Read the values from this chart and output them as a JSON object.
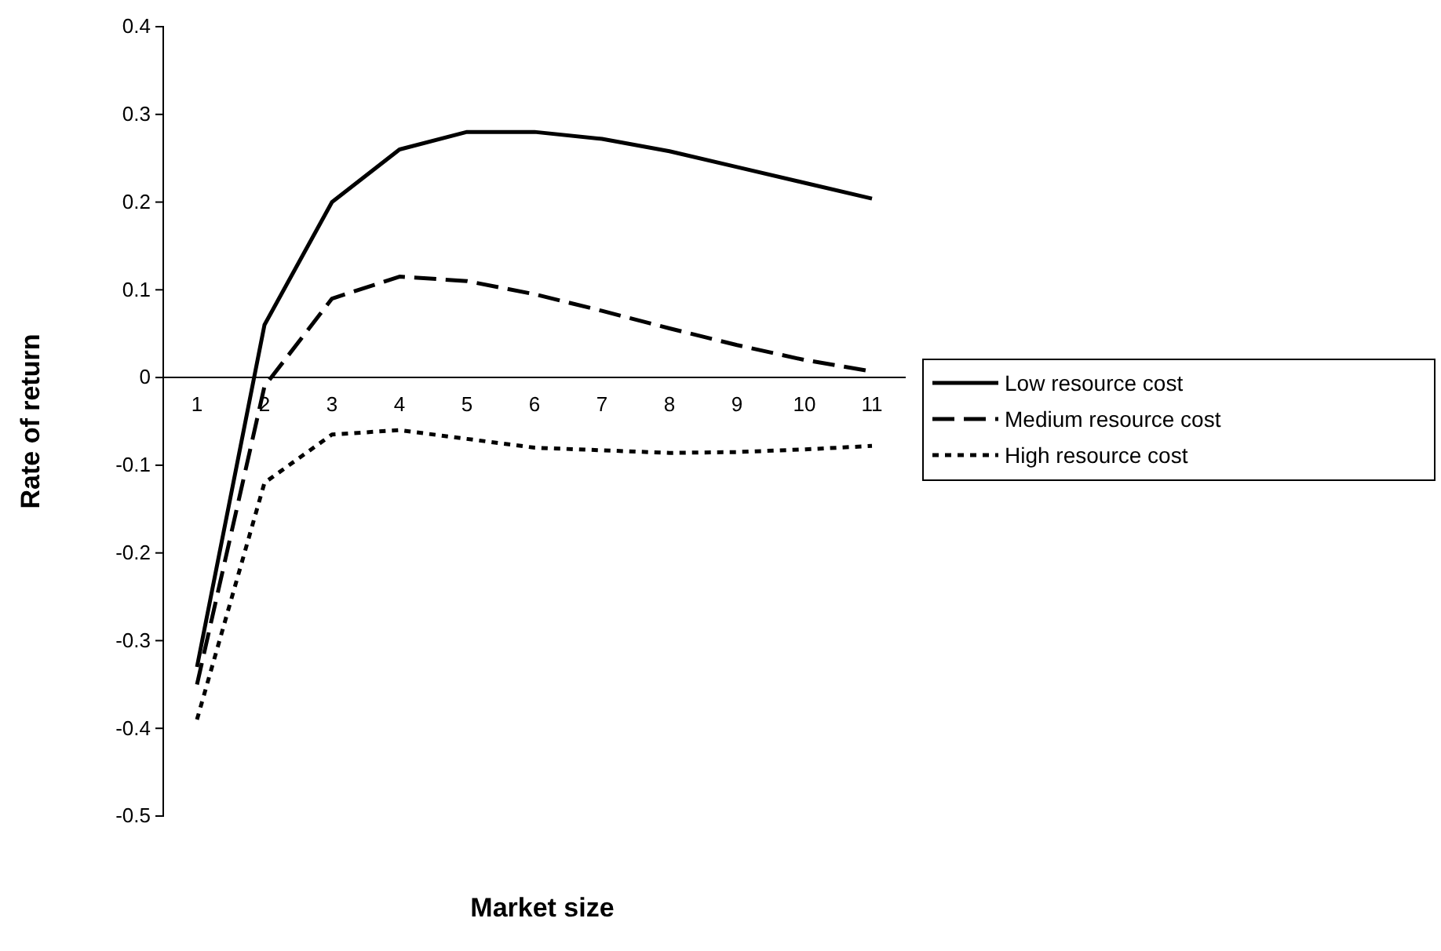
{
  "chart_data": {
    "type": "line",
    "xlabel": "Market size",
    "ylabel": "Rate of return",
    "categories": [
      "1",
      "2",
      "3",
      "4",
      "5",
      "6",
      "7",
      "8",
      "9",
      "10",
      "11"
    ],
    "ylim": [
      -0.5,
      0.4
    ],
    "yticks": [
      -0.5,
      -0.4,
      -0.3,
      -0.2,
      -0.1,
      0,
      0.1,
      0.2,
      0.3,
      0.4
    ],
    "grid": false,
    "legend": "right",
    "marker": "none",
    "series": [
      {
        "name": "Low resource cost",
        "color": "#000000",
        "line_style": "solid",
        "values": [
          -0.33,
          0.06,
          0.2,
          0.26,
          0.28,
          0.28,
          0.272,
          0.258,
          0.24,
          0.222,
          0.204
        ]
      },
      {
        "name": "Medium resource cost",
        "color": "#000000",
        "line_style": "dashed",
        "values": [
          -0.35,
          -0.01,
          0.09,
          0.115,
          0.11,
          0.095,
          0.076,
          0.056,
          0.037,
          0.02,
          0.007
        ]
      },
      {
        "name": "High resource cost",
        "color": "#000000",
        "line_style": "dotted",
        "values": [
          -0.39,
          -0.12,
          -0.065,
          -0.06,
          -0.07,
          -0.08,
          -0.083,
          -0.086,
          -0.085,
          -0.082,
          -0.078
        ]
      }
    ]
  }
}
